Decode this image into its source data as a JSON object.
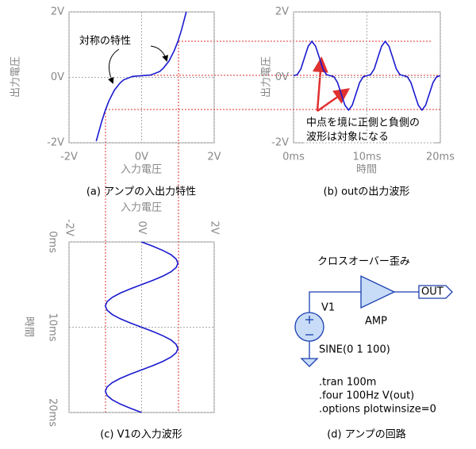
{
  "chart_data": [
    {
      "type": "line",
      "title": "(a) アンプの入出力特性",
      "x_label": "入力電圧",
      "y_label": "出力電圧",
      "annotations": [
        "対称の特性"
      ],
      "x": [
        -1.25,
        -1.1,
        -1,
        -0.9,
        -0.75,
        -0.6,
        -0.5,
        -0.25,
        0,
        0.25,
        0.5,
        0.6,
        0.75,
        0.9,
        1,
        1.1,
        1.23
      ],
      "values": [
        -1.95,
        -1.35,
        -1.0,
        -0.72,
        -0.39,
        -0.18,
        -0.08,
        0.03,
        0.05,
        0.07,
        0.18,
        0.28,
        0.49,
        0.82,
        1.1,
        1.45,
        2.0
      ],
      "color": "#1a1ad0",
      "xlim": [
        -2,
        2
      ],
      "xticks": [
        {
          "value": -2,
          "label": "-2V"
        },
        {
          "value": 0,
          "label": "0V"
        },
        {
          "value": 2,
          "label": "2V"
        }
      ],
      "ylim": [
        -2,
        2
      ],
      "yticks": [
        {
          "value": -2,
          "label": "-2V"
        },
        {
          "value": 0,
          "label": "0V"
        },
        {
          "value": 2,
          "label": "2V"
        }
      ],
      "grid": true
    },
    {
      "type": "line",
      "title": "(b) outの出力波形",
      "x_label": "時間",
      "y_label": "出力電圧",
      "annotations": [
        "中点を境に正側と負側の",
        "波形は対象になる"
      ],
      "x": [
        0,
        0.5,
        1,
        1.5,
        2,
        2.5,
        3,
        3.5,
        4,
        4.5,
        5,
        5.5,
        6,
        6.5,
        7,
        7.5,
        8,
        8.5,
        9,
        9.5,
        10,
        10.5,
        11,
        11.5,
        12,
        12.5,
        13,
        13.5,
        14,
        14.5,
        15,
        15.5,
        16,
        16.5,
        17,
        17.5,
        18,
        18.5,
        19,
        19.5,
        20
      ],
      "values": [
        0.05,
        0.08,
        0.26,
        0.61,
        0.95,
        1.1,
        0.95,
        0.61,
        0.26,
        0.08,
        0.05,
        0.02,
        -0.16,
        -0.51,
        -0.85,
        -1.0,
        -0.85,
        -0.51,
        -0.16,
        0.02,
        0.05,
        0.08,
        0.26,
        0.61,
        0.95,
        1.1,
        0.95,
        0.61,
        0.26,
        0.08,
        0.05,
        0.02,
        -0.16,
        -0.51,
        -0.85,
        -1.0,
        -0.85,
        -0.51,
        -0.16,
        0.02,
        0.05
      ],
      "color": "#1a1ad0",
      "xlim": [
        0,
        20
      ],
      "xticks": [
        {
          "value": 0,
          "label": "0ms"
        },
        {
          "value": 10,
          "label": "10ms"
        },
        {
          "value": 20,
          "label": "20ms"
        }
      ],
      "ylim": [
        -2,
        2
      ],
      "yticks": [
        {
          "value": -2,
          "label": "-2V"
        },
        {
          "value": 0,
          "label": "0V"
        },
        {
          "value": 2,
          "label": "2V"
        }
      ],
      "grid": true
    },
    {
      "type": "line",
      "orientation": "rotated",
      "title": "(c) V1の入力波形",
      "x_label": "時間",
      "y_label": "入力電圧",
      "x": [
        0,
        0.5,
        1,
        1.5,
        2,
        2.5,
        3,
        3.5,
        4,
        4.5,
        5,
        5.5,
        6,
        6.5,
        7,
        7.5,
        8,
        8.5,
        9,
        9.5,
        10,
        10.5,
        11,
        11.5,
        12,
        12.5,
        13,
        13.5,
        14,
        14.5,
        15,
        15.5,
        16,
        16.5,
        17,
        17.5,
        18,
        18.5,
        19,
        19.5,
        20
      ],
      "values": [
        0,
        0.31,
        0.59,
        0.81,
        0.95,
        1,
        0.95,
        0.81,
        0.59,
        0.31,
        0,
        -0.31,
        -0.59,
        -0.81,
        -0.95,
        -1,
        -0.95,
        -0.81,
        -0.59,
        -0.31,
        0,
        0.31,
        0.59,
        0.81,
        0.95,
        1,
        0.95,
        0.81,
        0.59,
        0.31,
        0,
        -0.31,
        -0.59,
        -0.81,
        -0.95,
        -1,
        -0.95,
        -0.81,
        -0.59,
        -0.31,
        0
      ],
      "color": "#1a1ad0",
      "xlim": [
        0,
        20
      ],
      "xticks": [
        {
          "value": 0,
          "label": "0ms"
        },
        {
          "value": 10,
          "label": "10ms"
        },
        {
          "value": 20,
          "label": "20ms"
        }
      ],
      "ylim": [
        -2,
        2
      ],
      "yticks": [
        {
          "value": -2,
          "label": "-2V"
        },
        {
          "value": 0,
          "label": "0V"
        },
        {
          "value": 2,
          "label": "2V"
        }
      ],
      "grid": true
    }
  ],
  "circuit": {
    "title": "(d) アンプの回路",
    "heading": "クロスオーバー歪み",
    "source": "V1",
    "amp": "AMP",
    "out": "OUT",
    "source_spec": "SINE(0 1 100)",
    "directives": [
      ".tran 100m",
      ".four 100Hz V(out)",
      ".options plotwinsize=0"
    ]
  }
}
